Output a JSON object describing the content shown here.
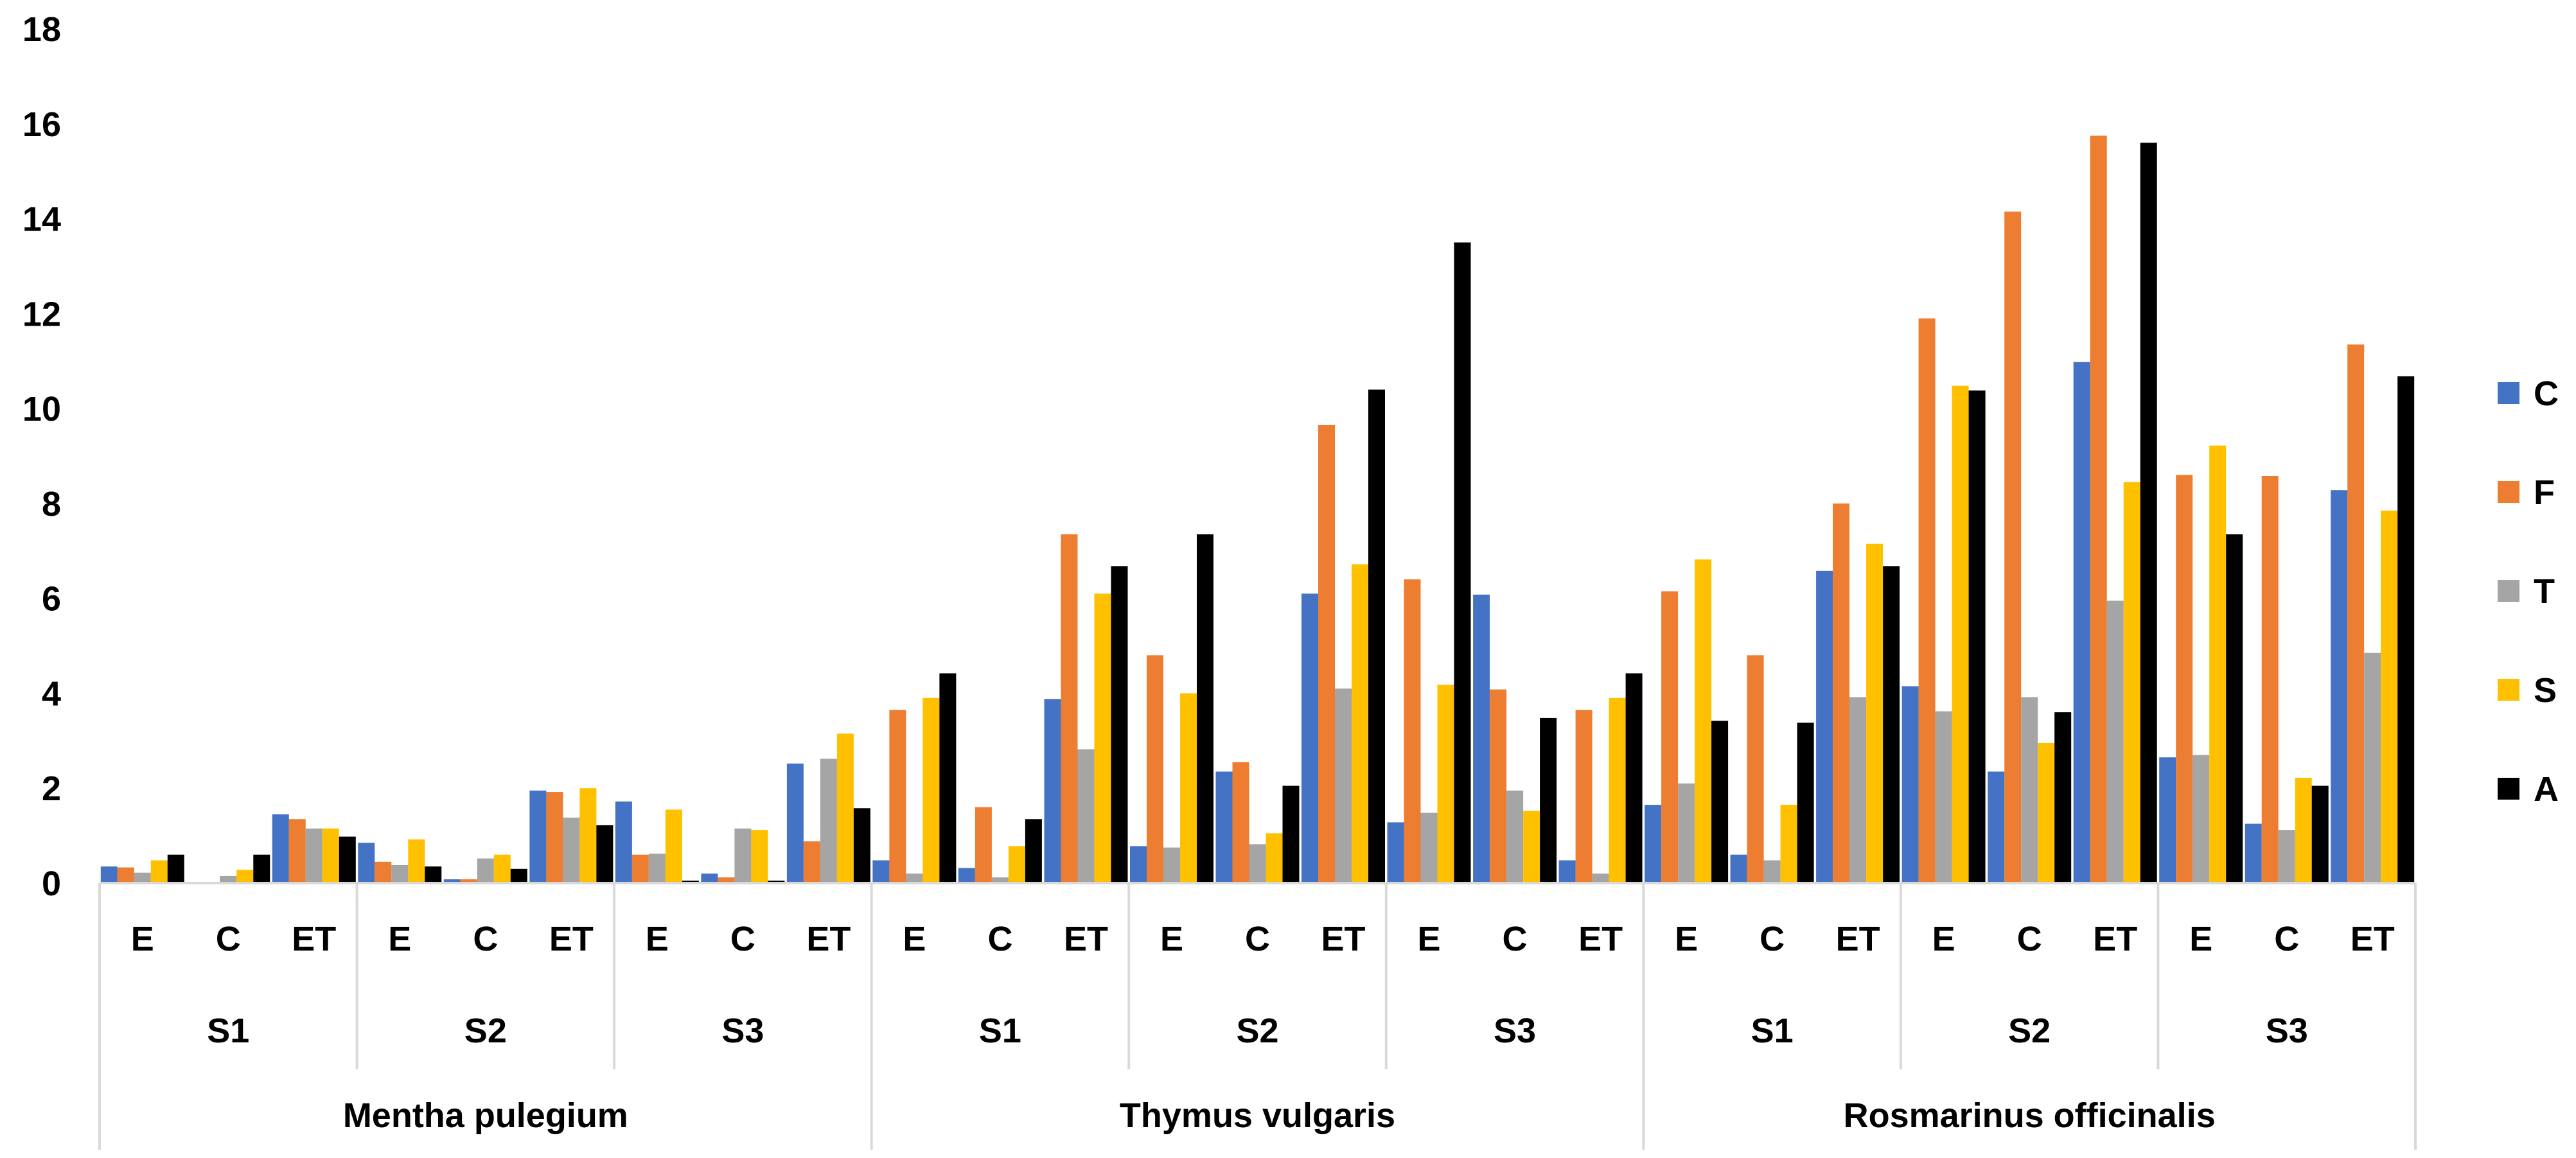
{
  "chart_data": {
    "type": "bar",
    "title": "",
    "xlabel": "",
    "ylabel": "",
    "ylim": [
      0,
      18
    ],
    "yticks": [
      0,
      2,
      4,
      6,
      8,
      10,
      12,
      14,
      16,
      18
    ],
    "grid": false,
    "legend_position": "right",
    "groups": [
      {
        "label": "Mentha pulegium",
        "subgroups": [
          {
            "label": "S1",
            "categories": [
              "E",
              "C",
              "ET"
            ]
          },
          {
            "label": "S2",
            "categories": [
              "E",
              "C",
              "ET"
            ]
          },
          {
            "label": "S3",
            "categories": [
              "E",
              "C",
              "ET"
            ]
          }
        ]
      },
      {
        "label": "Thymus vulgaris",
        "subgroups": [
          {
            "label": "S1",
            "categories": [
              "E",
              "C",
              "ET"
            ]
          },
          {
            "label": "S2",
            "categories": [
              "E",
              "C",
              "ET"
            ]
          },
          {
            "label": "S3",
            "categories": [
              "E",
              "C",
              "ET"
            ]
          }
        ]
      },
      {
        "label": "Rosmarinus officinalis",
        "subgroups": [
          {
            "label": "S1",
            "categories": [
              "E",
              "C",
              "ET"
            ]
          },
          {
            "label": "S2",
            "categories": [
              "E",
              "C",
              "ET"
            ]
          },
          {
            "label": "S3",
            "categories": [
              "E",
              "C",
              "ET"
            ]
          }
        ]
      }
    ],
    "series": [
      {
        "name": "C",
        "color": "#4472C4",
        "values": [
          0.35,
          0.02,
          1.45,
          0.85,
          0.08,
          1.95,
          1.72,
          0.2,
          2.52,
          0.48,
          0.32,
          3.88,
          0.78,
          2.35,
          6.1,
          1.28,
          6.08,
          0.48,
          1.65,
          0.6,
          6.58,
          4.15,
          2.35,
          10.98,
          2.65,
          1.25,
          8.28
        ]
      },
      {
        "name": "F",
        "color": "#ED7D31",
        "values": [
          0.33,
          0.0,
          1.35,
          0.45,
          0.08,
          1.92,
          0.6,
          0.12,
          0.88,
          3.65,
          1.6,
          7.35,
          4.8,
          2.55,
          9.65,
          6.4,
          4.08,
          3.65,
          6.15,
          4.8,
          8.0,
          11.9,
          14.15,
          15.75,
          8.6,
          8.58,
          11.35
        ]
      },
      {
        "name": "T",
        "color": "#A5A5A5",
        "values": [
          0.22,
          0.15,
          1.15,
          0.38,
          0.52,
          1.38,
          0.62,
          1.15,
          2.62,
          0.2,
          0.12,
          2.82,
          0.75,
          0.82,
          4.1,
          1.48,
          1.95,
          0.2,
          2.1,
          0.48,
          3.92,
          3.62,
          3.92,
          5.95,
          2.7,
          1.12,
          4.85
        ]
      },
      {
        "name": "S",
        "color": "#FFC000",
        "values": [
          0.48,
          0.28,
          1.15,
          0.92,
          0.6,
          2.0,
          1.55,
          1.12,
          3.15,
          3.9,
          0.78,
          6.1,
          4.0,
          1.05,
          6.72,
          4.18,
          1.52,
          3.9,
          6.82,
          1.65,
          7.15,
          10.48,
          2.95,
          8.45,
          9.22,
          2.22,
          7.85
        ]
      },
      {
        "name": "A",
        "color": "#000000",
        "values": [
          0.6,
          0.6,
          0.98,
          0.35,
          0.3,
          1.22,
          0.05,
          0.05,
          1.58,
          4.42,
          1.35,
          6.68,
          7.35,
          2.05,
          10.4,
          13.5,
          3.48,
          4.42,
          3.42,
          3.38,
          6.68,
          10.38,
          3.6,
          15.6,
          7.35,
          2.05,
          10.68
        ]
      }
    ]
  }
}
